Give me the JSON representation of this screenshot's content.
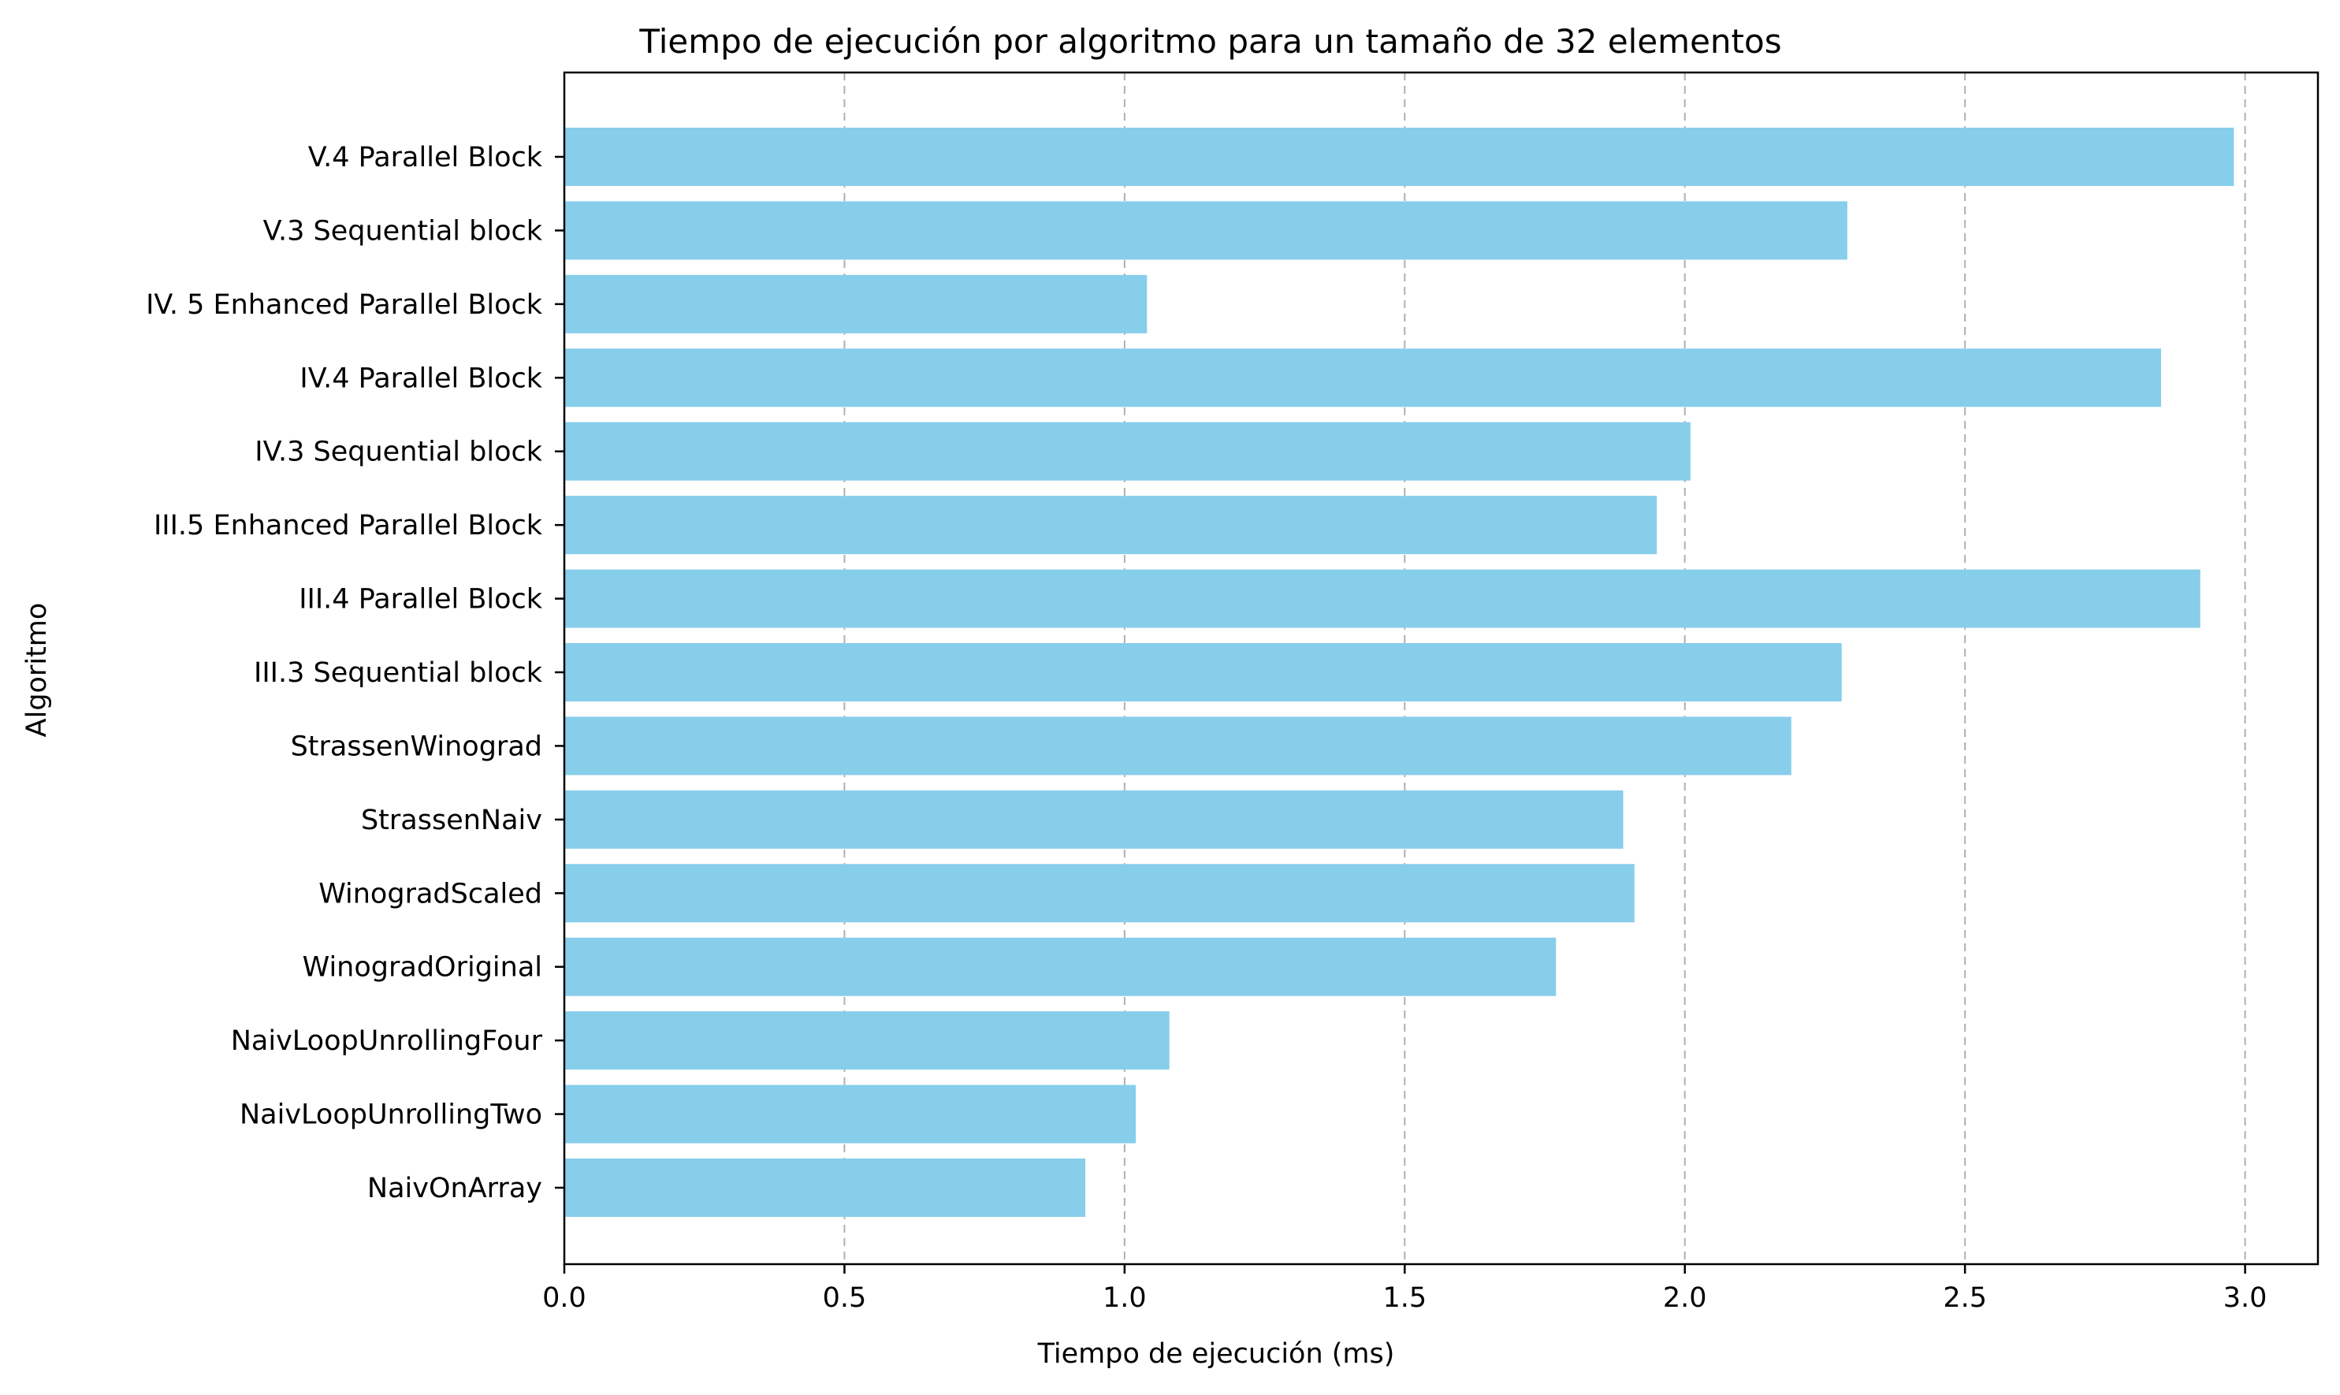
{
  "chart_data": {
    "type": "bar",
    "orientation": "horizontal",
    "title": "Tiempo de ejecución por algoritmo para un tamaño de 32 elementos",
    "xlabel": "Tiempo de ejecución (ms)",
    "ylabel": "Algoritmo",
    "xlim": [
      0,
      3.13
    ],
    "xticks": [
      "0.0",
      "0.5",
      "1.0",
      "1.5",
      "2.0",
      "2.5",
      "3.0"
    ],
    "grid": "x-dashed",
    "bar_color": "#87ceeb",
    "categories": [
      "NaivOnArray",
      "NaivLoopUnrollingTwo",
      "NaivLoopUnrollingFour",
      "WinogradOriginal",
      "WinogradScaled",
      "StrassenNaiv",
      "StrassenWinograd",
      "III.3 Sequential block",
      "III.4 Parallel Block",
      "III.5 Enhanced Parallel Block",
      "IV.3 Sequential block",
      "IV.4 Parallel Block",
      "IV. 5 Enhanced Parallel Block",
      "V.3 Sequential block",
      "V.4 Parallel Block"
    ],
    "values": [
      0.93,
      1.02,
      1.08,
      1.77,
      1.91,
      1.89,
      2.19,
      2.28,
      2.92,
      1.95,
      2.01,
      2.85,
      1.04,
      2.29,
      2.98
    ]
  }
}
